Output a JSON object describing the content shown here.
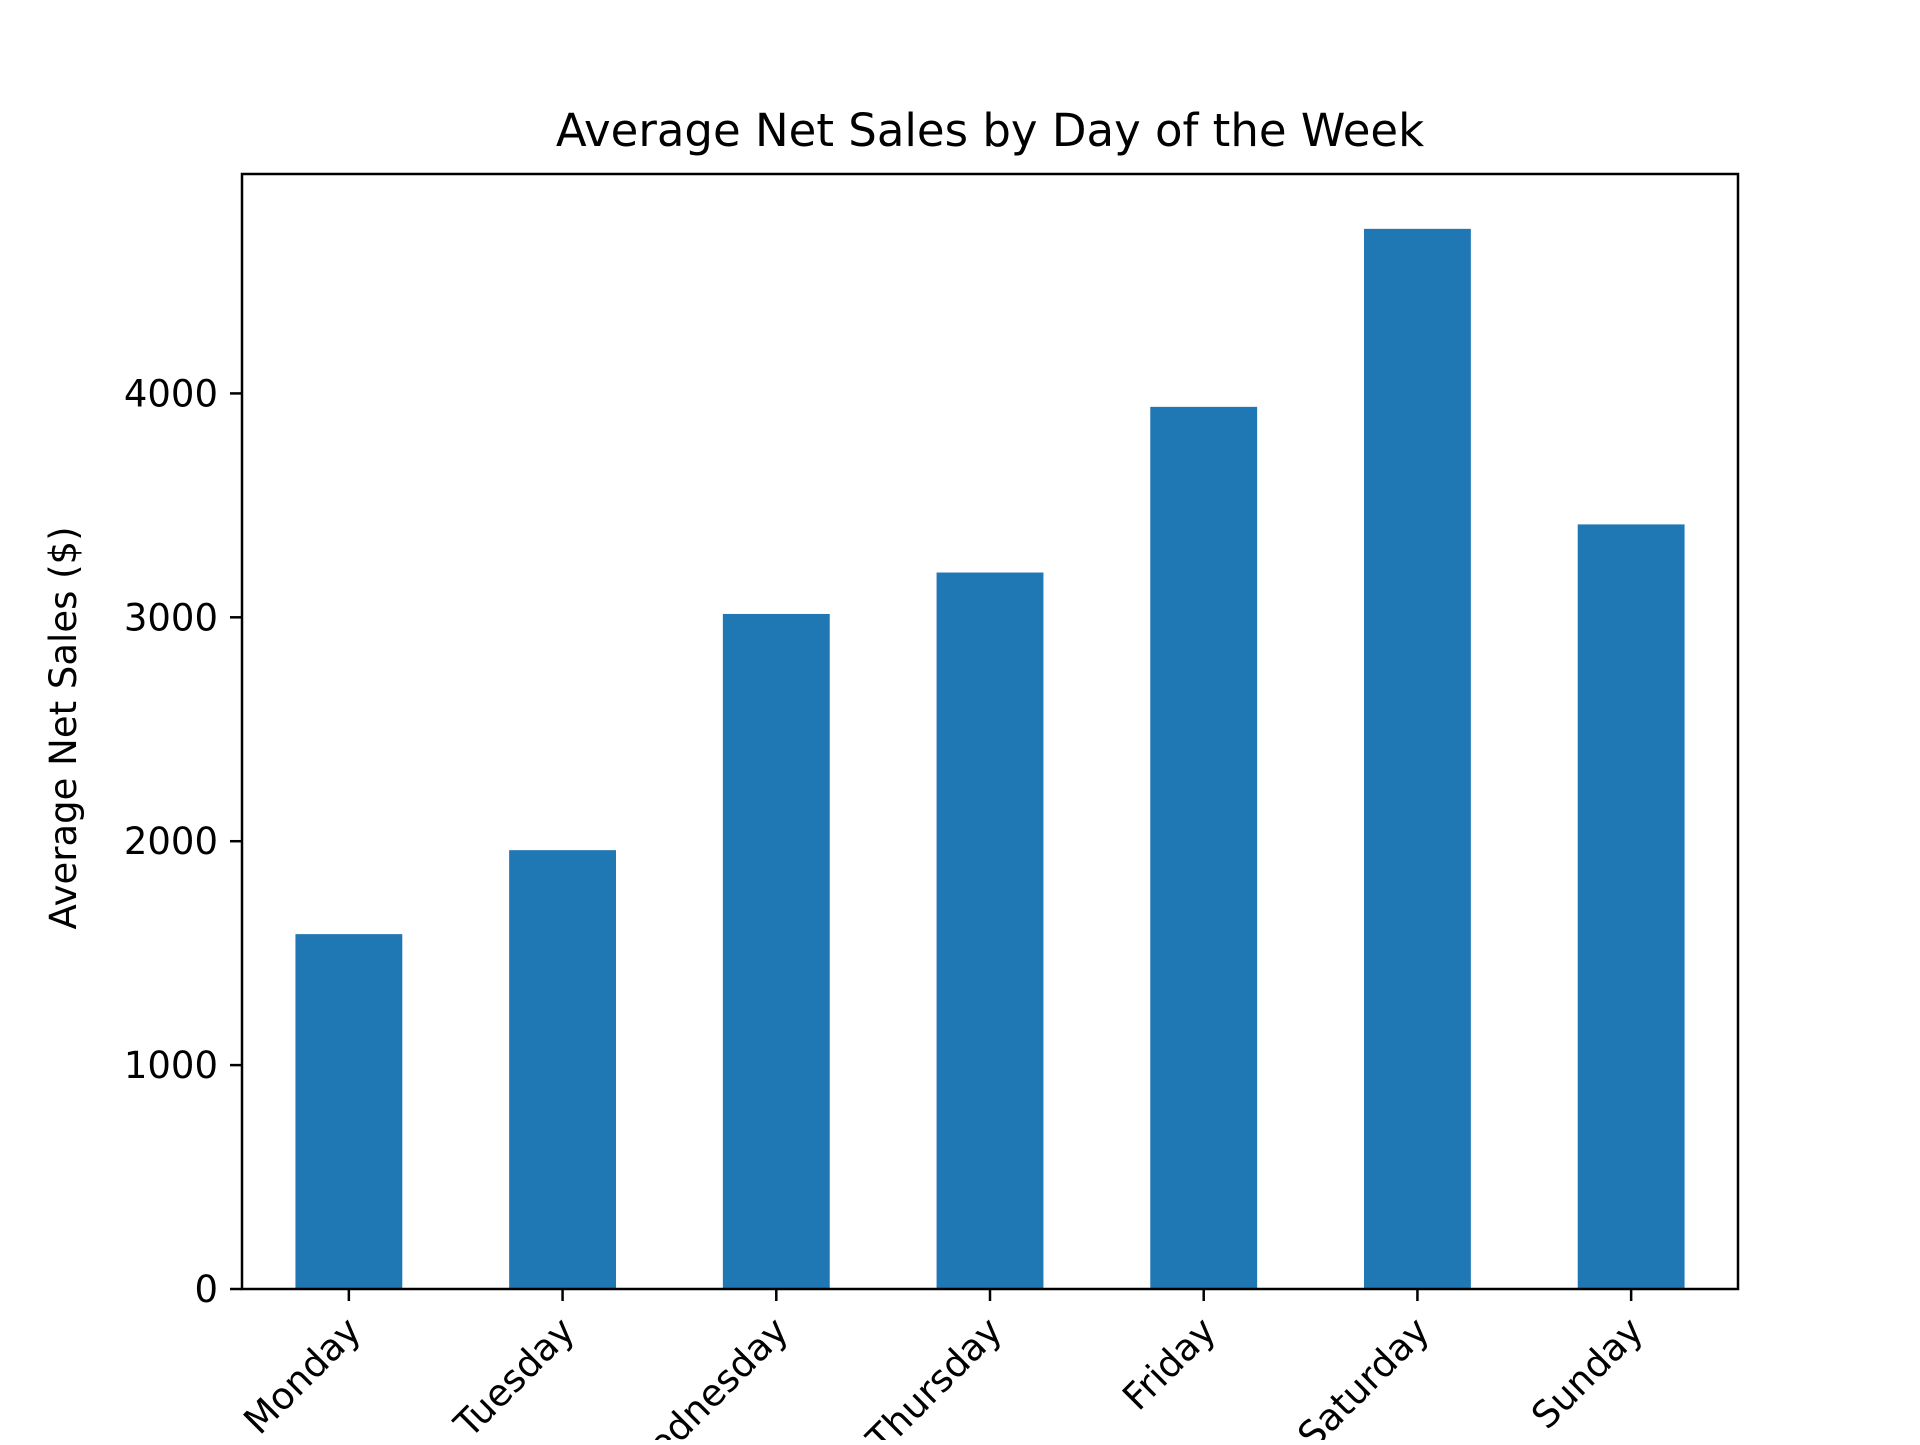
{
  "chart_data": {
    "type": "bar",
    "title": "Average Net Sales by Day of the Week",
    "xlabel": "",
    "ylabel": "Average Net Sales ($)",
    "categories": [
      "Monday",
      "Tuesday",
      "Wednesday",
      "Thursday",
      "Friday",
      "Saturday",
      "Sunday"
    ],
    "values": [
      1585,
      1960,
      3015,
      3200,
      3940,
      4735,
      3415
    ],
    "ylim": [
      0,
      4980
    ],
    "yticks": [
      0,
      1000,
      2000,
      3000,
      4000
    ],
    "grid": false,
    "legend": "none",
    "bar_color": "#1f77b4"
  }
}
